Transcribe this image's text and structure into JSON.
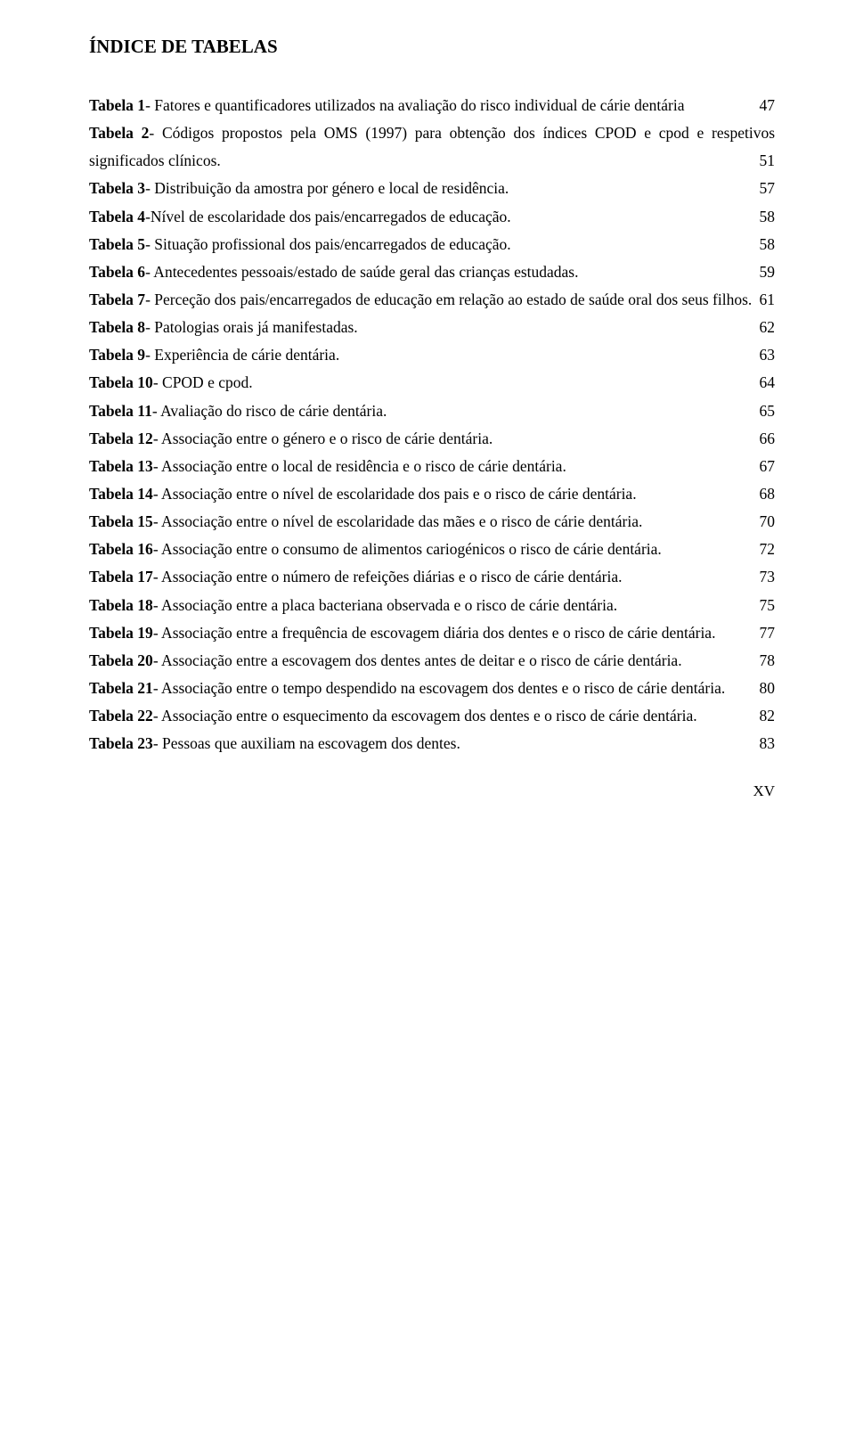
{
  "title": "ÍNDICE DE TABELAS",
  "footer": "XV",
  "typography": {
    "font_family": "Times New Roman",
    "title_fontsize_pt": 16,
    "body_fontsize_pt": 13,
    "line_height": 1.78,
    "text_color": "#000000",
    "background_color": "#ffffff"
  },
  "entries": [
    {
      "label": "Tabela 1",
      "text": "- Fatores e quantificadores utilizados na avaliação do risco individual de cárie dentária",
      "page": "47"
    },
    {
      "label": "Tabela 2",
      "text": "- Códigos propostos pela OMS (1997) para obtenção dos índices CPOD e cpod e respetivos significados clínicos.",
      "page": "51"
    },
    {
      "label": "Tabela 3",
      "text": "- Distribuição da amostra por género e local de residência.",
      "page": "57"
    },
    {
      "label": "Tabela 4",
      "text": "-Nível de escolaridade dos pais/encarregados de educação.",
      "page": "58"
    },
    {
      "label": "Tabela 5",
      "text": "- Situação profissional dos pais/encarregados de educação.",
      "page": "58"
    },
    {
      "label": "Tabela 6",
      "text": "- Antecedentes pessoais/estado de saúde geral das crianças estudadas.",
      "page": "59"
    },
    {
      "label": "Tabela 7",
      "text": "- Perceção dos pais/encarregados de educação em relação ao estado de saúde oral dos seus filhos.",
      "page": "61"
    },
    {
      "label": "Tabela 8",
      "text": "- Patologias orais já manifestadas.",
      "page": "62"
    },
    {
      "label": "Tabela 9",
      "text": "- Experiência de cárie dentária.",
      "page": "63"
    },
    {
      "label": "Tabela 10",
      "text": "- CPOD e cpod.",
      "page": "64"
    },
    {
      "label": "Tabela 11",
      "text": "- Avaliação do risco de cárie dentária.",
      "page": "65"
    },
    {
      "label": "Tabela 12",
      "text": "- Associação entre o género e o risco de cárie dentária.",
      "page": "66"
    },
    {
      "label": "Tabela 13",
      "text": "- Associação entre o local de residência e o risco de cárie dentária.",
      "page": "67"
    },
    {
      "label": "Tabela 14",
      "text": "- Associação entre o nível de escolaridade dos pais e o risco de cárie dentária.",
      "page": "68"
    },
    {
      "label": "Tabela 15",
      "text": "- Associação entre o nível de escolaridade das mães e o risco de cárie dentária.",
      "page": "70"
    },
    {
      "label": "Tabela 16",
      "text": "- Associação entre o consumo de alimentos cariogénicos o risco de cárie dentária.",
      "page": "72"
    },
    {
      "label": "Tabela 17",
      "text": "- Associação entre o número de refeições diárias e o risco de cárie dentária.",
      "page": "73"
    },
    {
      "label": "Tabela 18",
      "text": "- Associação entre a placa bacteriana observada e o risco de cárie dentária.",
      "page": "75"
    },
    {
      "label": "Tabela 19",
      "text": "- Associação entre a frequência de escovagem diária dos dentes e o risco de cárie dentária.",
      "page": "77"
    },
    {
      "label": "Tabela 20",
      "text": "- Associação entre a escovagem dos dentes antes de deitar e o risco de cárie dentária.",
      "page": "78"
    },
    {
      "label": "Tabela 21",
      "text": "- Associação entre o tempo despendido na escovagem dos dentes e o risco de cárie dentária.",
      "page": "80"
    },
    {
      "label": "Tabela 22",
      "text": "- Associação entre o esquecimento da escovagem dos dentes e o risco de cárie dentária.",
      "page": "82"
    },
    {
      "label": "Tabela 23",
      "text": "- Pessoas que auxiliam na escovagem dos dentes.",
      "page": "83"
    }
  ]
}
